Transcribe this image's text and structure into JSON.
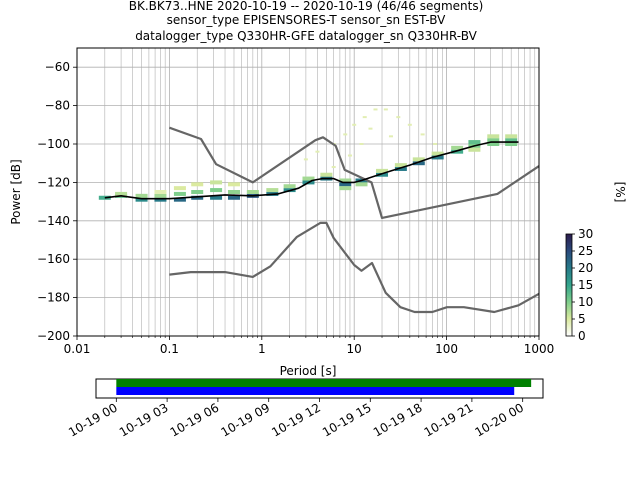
{
  "title_lines": [
    "BK.BK73..HNE   2020-10-19 -- 2020-10-19  (46/46 segments)",
    "sensor_type EPISENSORES-T sensor_sn EST-BV",
    "datalogger_type Q330HR-GFE datalogger_sn Q330HR-BV"
  ],
  "chart_data": [
    {
      "type": "heatmap",
      "xlabel": "Period [s]",
      "ylabel": "Power [dB]",
      "xscale": "log",
      "xlim": [
        0.01,
        1000
      ],
      "ylim": [
        -200,
        -50
      ],
      "grid": true,
      "x_ticks": [
        0.01,
        0.1,
        1,
        10,
        100,
        1000
      ],
      "x_tick_labels": [
        "0.01",
        "0.1",
        "1",
        "10",
        "100",
        "1000"
      ],
      "y_ticks": [
        -60,
        -80,
        -100,
        -120,
        -140,
        -160,
        -180,
        -200
      ],
      "y_tick_labels": [
        "−60",
        "−80",
        "−100",
        "−120",
        "−140",
        "−160",
        "−180",
        "−200"
      ],
      "colorbar": {
        "label": "[%]",
        "range": [
          0,
          30
        ],
        "ticks": [
          0,
          5,
          10,
          15,
          20,
          25,
          30
        ],
        "tick_labels": [
          "0",
          "5",
          "10",
          "15",
          "20",
          "25",
          "30"
        ],
        "colors": [
          "#ffffff",
          "#dbeaa0",
          "#7fce8c",
          "#34a58d",
          "#277a89",
          "#2a4a7c",
          "#2c1c4c"
        ]
      },
      "series": [
        {
          "role": "noise-model-high",
          "color": "#666666",
          "points": [
            [
              0.1,
              -91.5
            ],
            [
              0.22,
              -97.4
            ],
            [
              0.32,
              -110.5
            ],
            [
              0.8,
              -120.0
            ],
            [
              3.8,
              -98.0
            ],
            [
              4.6,
              -96.5
            ],
            [
              6.3,
              -101.0
            ],
            [
              7.9,
              -113.5
            ],
            [
              15.4,
              -120.0
            ],
            [
              20.0,
              -138.5
            ],
            [
              354.8,
              -126.0
            ],
            [
              1000,
              -111.5
            ]
          ]
        },
        {
          "role": "noise-model-low",
          "color": "#666666",
          "points": [
            [
              0.1,
              -168.0
            ],
            [
              0.17,
              -166.7
            ],
            [
              0.4,
              -166.7
            ],
            [
              0.8,
              -169.2
            ],
            [
              1.24,
              -163.7
            ],
            [
              2.4,
              -148.4
            ],
            [
              4.3,
              -141.1
            ],
            [
              5.0,
              -141.1
            ],
            [
              6.0,
              -149.0
            ],
            [
              10.0,
              -163.0
            ],
            [
              12.0,
              -166.0
            ],
            [
              15.6,
              -162.0
            ],
            [
              21.9,
              -177.5
            ],
            [
              31.6,
              -185.0
            ],
            [
              45.0,
              -187.5
            ],
            [
              70.0,
              -187.5
            ],
            [
              101,
              -185.0
            ],
            [
              154,
              -185.0
            ],
            [
              328,
              -187.5
            ],
            [
              600,
              -184.0
            ],
            [
              1000,
              -178.0
            ]
          ]
        },
        {
          "role": "mode",
          "color": "#000000",
          "points": [
            [
              0.02,
              -128
            ],
            [
              0.03,
              -127
            ],
            [
              0.05,
              -128.5
            ],
            [
              0.1,
              -128.5
            ],
            [
              0.2,
              -127.5
            ],
            [
              0.4,
              -126.5
            ],
            [
              0.8,
              -127
            ],
            [
              1.5,
              -126
            ],
            [
              2.5,
              -123
            ],
            [
              3.5,
              -119
            ],
            [
              4.5,
              -118
            ],
            [
              6,
              -118
            ],
            [
              7.5,
              -120
            ],
            [
              10,
              -120
            ],
            [
              12,
              -119
            ],
            [
              16,
              -117
            ],
            [
              25,
              -114
            ],
            [
              40,
              -111
            ],
            [
              70,
              -107
            ],
            [
              120,
              -104
            ],
            [
              200,
              -101
            ],
            [
              300,
              -99
            ],
            [
              600,
              -99
            ]
          ]
        }
      ],
      "psd_density": [
        {
          "period": 0.02,
          "power": [
            -128
          ],
          "percent": [
            14
          ]
        },
        {
          "period": 0.03,
          "power": [
            -127,
            -126
          ],
          "percent": [
            12,
            7
          ]
        },
        {
          "period": 0.05,
          "power": [
            -129,
            -127
          ],
          "percent": [
            18,
            8
          ]
        },
        {
          "period": 0.08,
          "power": [
            -129,
            -127,
            -125
          ],
          "percent": [
            20,
            8,
            4
          ]
        },
        {
          "period": 0.13,
          "power": [
            -129,
            -126,
            -123
          ],
          "percent": [
            22,
            10,
            5
          ]
        },
        {
          "period": 0.2,
          "power": [
            -128,
            -125,
            -121
          ],
          "percent": [
            22,
            10,
            5
          ]
        },
        {
          "period": 0.32,
          "power": [
            -128,
            -124,
            -120
          ],
          "percent": [
            20,
            10,
            6
          ]
        },
        {
          "period": 0.5,
          "power": [
            -128,
            -125,
            -121
          ],
          "percent": [
            22,
            9,
            5
          ]
        },
        {
          "period": 0.8,
          "power": [
            -127,
            -125
          ],
          "percent": [
            24,
            8
          ]
        },
        {
          "period": 1.3,
          "power": [
            -126,
            -124
          ],
          "percent": [
            20,
            7
          ]
        },
        {
          "period": 2,
          "power": [
            -124,
            -122
          ],
          "percent": [
            18,
            8
          ]
        },
        {
          "period": 3.2,
          "power": [
            -120,
            -118
          ],
          "percent": [
            18,
            8
          ]
        },
        {
          "period": 5,
          "power": [
            -118,
            -116
          ],
          "percent": [
            20,
            6
          ]
        },
        {
          "period": 8,
          "power": [
            -121,
            -119,
            -123
          ],
          "percent": [
            22,
            8,
            8
          ]
        },
        {
          "period": 12,
          "power": [
            -119,
            -121
          ],
          "percent": [
            20,
            8
          ]
        },
        {
          "period": 20,
          "power": [
            -116,
            -114
          ],
          "percent": [
            18,
            6
          ]
        },
        {
          "period": 32,
          "power": [
            -113,
            -111
          ],
          "percent": [
            20,
            6
          ]
        },
        {
          "period": 50,
          "power": [
            -110,
            -108
          ],
          "percent": [
            22,
            6
          ]
        },
        {
          "period": 80,
          "power": [
            -107,
            -105
          ],
          "percent": [
            20,
            6
          ]
        },
        {
          "period": 130,
          "power": [
            -104,
            -102
          ],
          "percent": [
            14,
            8
          ]
        },
        {
          "period": 200,
          "power": [
            -101,
            -99,
            -103
          ],
          "percent": [
            10,
            12,
            6
          ]
        },
        {
          "period": 320,
          "power": [
            -98,
            -100,
            -96
          ],
          "percent": [
            10,
            10,
            6
          ]
        },
        {
          "period": 500,
          "power": [
            -98,
            -100,
            -96
          ],
          "percent": [
            12,
            10,
            6
          ]
        }
      ],
      "psd_outliers": [
        {
          "period": 3,
          "power": -108,
          "percent": 1
        },
        {
          "period": 4,
          "power": -104,
          "percent": 1
        },
        {
          "period": 6,
          "power": -100,
          "percent": 1
        },
        {
          "period": 8,
          "power": -95,
          "percent": 1
        },
        {
          "period": 10,
          "power": -90,
          "percent": 1
        },
        {
          "period": 13,
          "power": -86,
          "percent": 1
        },
        {
          "period": 17,
          "power": -82,
          "percent": 1
        },
        {
          "period": 22,
          "power": -82,
          "percent": 1
        },
        {
          "period": 30,
          "power": -86,
          "percent": 1
        },
        {
          "period": 40,
          "power": -90,
          "percent": 1
        },
        {
          "period": 55,
          "power": -95,
          "percent": 1
        },
        {
          "period": 75,
          "power": -100,
          "percent": 1
        },
        {
          "period": 15,
          "power": -92,
          "percent": 1
        },
        {
          "period": 12,
          "power": -100,
          "percent": 1
        },
        {
          "period": 25,
          "power": -96,
          "percent": 1
        },
        {
          "period": 6,
          "power": -112,
          "percent": 1
        },
        {
          "period": 9,
          "power": -106,
          "percent": 1
        }
      ]
    },
    {
      "type": "timeline",
      "x_tick_labels": [
        "10-19 00",
        "10-19 03",
        "10-19 06",
        "10-19 09",
        "10-19 12",
        "10-19 15",
        "10-19 18",
        "10-19 21",
        "10-20 00"
      ],
      "x_tick_hours": [
        0,
        3,
        6,
        9,
        12,
        15,
        18,
        21,
        24
      ],
      "xlim_hours": [
        -1.2,
        25.2
      ],
      "bars": [
        {
          "row": "top",
          "start_hour": 0,
          "end_hour": 24.5,
          "color": "#008000"
        },
        {
          "row": "bottom",
          "start_hour": 0,
          "end_hour": 23.5,
          "color": "#0000ff"
        }
      ]
    }
  ]
}
